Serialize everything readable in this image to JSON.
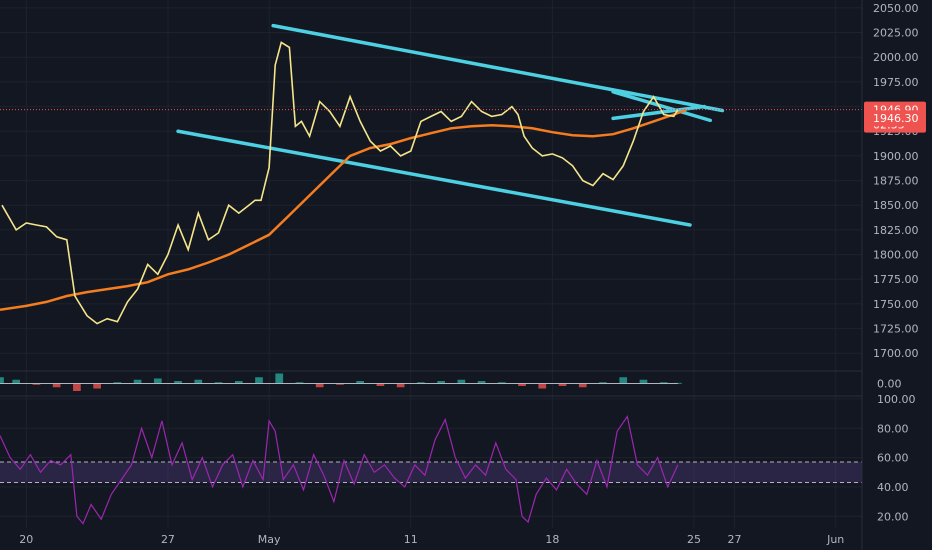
{
  "chart_data": {
    "type": "line",
    "instrument_panel": {
      "y_ticks": [
        "2050.00",
        "2025.00",
        "2000.00",
        "1975.00",
        "1950.00",
        "1925.00",
        "1900.00",
        "1875.00",
        "1850.00",
        "1825.00",
        "1800.00",
        "1775.00",
        "1750.00",
        "1725.00",
        "1700.00"
      ],
      "y_tick_values": [
        2050,
        2025,
        2000,
        1975,
        1950,
        1925,
        1900,
        1875,
        1850,
        1825,
        1800,
        1775,
        1750,
        1725,
        1700
      ],
      "ylim": [
        1682,
        2058
      ],
      "x_ticks": [
        "20",
        "27",
        "May",
        "11",
        "18",
        "25",
        "27",
        "Jun"
      ],
      "x_tick_days": [
        0,
        7,
        12,
        19,
        26,
        33,
        35,
        40
      ],
      "xlim": [
        -1.3,
        41.3
      ],
      "last_price_label": "1946.90",
      "last_price": 1946.9,
      "countdown_label": "02:55",
      "ma_label": "1946.30",
      "ma_value": 1946.3,
      "partial_label": "19",
      "price": {
        "x": [
          -1.2,
          -0.5,
          0,
          0.5,
          1,
          1.5,
          2,
          2.4,
          3,
          3.5,
          4,
          4.5,
          5,
          5.5,
          6,
          6.5,
          7,
          7.5,
          8,
          8.5,
          9,
          9.5,
          10,
          10.5,
          11,
          11.3,
          11.6,
          12,
          12.3,
          12.6,
          13,
          13.3,
          13.6,
          14,
          14.5,
          15,
          15.5,
          16,
          16.5,
          17,
          17.5,
          18,
          18.5,
          19,
          19.5,
          20,
          20.5,
          21,
          21.5,
          22,
          22.5,
          23,
          23.5,
          24,
          24.3,
          24.6,
          25,
          25.5,
          26,
          26.5,
          27,
          27.5,
          28,
          28.5,
          29,
          29.5,
          30,
          30.5,
          31,
          31.5,
          32,
          32.2
        ],
        "values": [
          1850,
          1825,
          1832,
          1830,
          1828,
          1818,
          1815,
          1758,
          1738,
          1730,
          1735,
          1732,
          1752,
          1765,
          1790,
          1780,
          1800,
          1830,
          1805,
          1842,
          1815,
          1822,
          1850,
          1842,
          1850,
          1855,
          1855,
          1888,
          1992,
          2015,
          2010,
          1930,
          1935,
          1920,
          1955,
          1945,
          1930,
          1960,
          1935,
          1915,
          1905,
          1910,
          1900,
          1905,
          1935,
          1940,
          1945,
          1935,
          1940,
          1955,
          1945,
          1940,
          1942,
          1950,
          1942,
          1920,
          1908,
          1900,
          1902,
          1898,
          1890,
          1875,
          1870,
          1882,
          1876,
          1890,
          1915,
          1945,
          1960,
          1942,
          1940,
          1946.9
        ]
      },
      "ma": {
        "x": [
          -1.3,
          0,
          1,
          2,
          3,
          4,
          5,
          6,
          7,
          8,
          9,
          10,
          11,
          12,
          13,
          14,
          15,
          16,
          17,
          18,
          19,
          20,
          21,
          22,
          23,
          24,
          25,
          26,
          27,
          28,
          29,
          30,
          31,
          32,
          32.6
        ],
        "values": [
          1744,
          1748,
          1752,
          1758,
          1762,
          1765,
          1768,
          1772,
          1780,
          1785,
          1792,
          1800,
          1810,
          1820,
          1840,
          1860,
          1880,
          1900,
          1908,
          1912,
          1918,
          1923,
          1928,
          1930,
          1931,
          1930,
          1928,
          1924,
          1921,
          1920,
          1922,
          1928,
          1935,
          1942,
          1946.3
        ]
      },
      "trendlines": [
        {
          "x": [
            12.2,
            34.4
          ],
          "values": [
            2032,
            1946
          ]
        },
        {
          "x": [
            7.5,
            32.8
          ],
          "values": [
            1925,
            1830
          ]
        },
        {
          "x": [
            29.0,
            33.8
          ],
          "values": [
            1965,
            1936
          ]
        },
        {
          "x": [
            29.0,
            33.5
          ],
          "values": [
            1938,
            1950
          ]
        }
      ]
    },
    "macd_panel": {
      "y_ticks": [
        "0.00"
      ],
      "y_tick_values": [
        0
      ],
      "ylim": [
        -1,
        1
      ],
      "x": [
        -1.3,
        -0.5,
        0.5,
        1.5,
        2.5,
        3.5,
        4.5,
        5.5,
        6.5,
        7.5,
        8.5,
        9.5,
        10.5,
        11.5,
        12.5,
        13.5,
        14.5,
        15.5,
        16.5,
        17.5,
        18.5,
        19.5,
        20.5,
        21.5,
        22.5,
        23.5,
        24.5,
        25.5,
        26.5,
        27.5,
        28.5,
        29.5,
        30.5,
        31.5,
        32.2
      ],
      "histogram": [
        0.5,
        0.3,
        -0.1,
        -0.3,
        -0.6,
        -0.4,
        0.1,
        0.3,
        0.4,
        0.2,
        0.3,
        0.1,
        0.2,
        0.5,
        0.8,
        0.1,
        -0.3,
        -0.1,
        0.2,
        -0.2,
        -0.3,
        0.1,
        0.2,
        0.3,
        0.2,
        0.1,
        -0.2,
        -0.4,
        -0.2,
        -0.3,
        0.1,
        0.5,
        0.3,
        0.1,
        0.05
      ]
    },
    "rsi_panel": {
      "y_ticks": [
        "100.00",
        "80.00",
        "60.00",
        "40.00",
        "20.00"
      ],
      "y_tick_values": [
        100,
        80,
        60,
        40,
        20
      ],
      "ylim": [
        12,
        102
      ],
      "band": [
        43,
        57
      ],
      "x": [
        -1.3,
        -0.8,
        -0.3,
        0.2,
        0.7,
        1.2,
        1.7,
        2.2,
        2.5,
        2.8,
        3.2,
        3.7,
        4.2,
        4.7,
        5.2,
        5.7,
        6.2,
        6.7,
        7.2,
        7.7,
        8.2,
        8.7,
        9.2,
        9.7,
        10.2,
        10.7,
        11.2,
        11.7,
        12,
        12.3,
        12.7,
        13.2,
        13.7,
        14.2,
        14.7,
        15.2,
        15.7,
        16.2,
        16.7,
        17.2,
        17.7,
        18.2,
        18.7,
        19.2,
        19.7,
        20.2,
        20.7,
        21.2,
        21.7,
        22.2,
        22.7,
        23.2,
        23.7,
        24.2,
        24.5,
        24.8,
        25.2,
        25.7,
        26.2,
        26.7,
        27.2,
        27.7,
        28.2,
        28.7,
        29.2,
        29.7,
        30.2,
        30.7,
        31.2,
        31.7,
        32.2
      ],
      "values": [
        75,
        60,
        52,
        62,
        50,
        58,
        55,
        62,
        20,
        15,
        28,
        18,
        35,
        45,
        55,
        80,
        60,
        85,
        55,
        70,
        45,
        60,
        40,
        55,
        62,
        40,
        58,
        45,
        85,
        78,
        45,
        55,
        38,
        62,
        48,
        30,
        58,
        42,
        62,
        50,
        55,
        46,
        40,
        55,
        48,
        72,
        86,
        60,
        46,
        55,
        48,
        70,
        52,
        45,
        20,
        16,
        35,
        46,
        38,
        52,
        42,
        35,
        58,
        40,
        78,
        88,
        55,
        48,
        60,
        40,
        55
      ]
    }
  }
}
